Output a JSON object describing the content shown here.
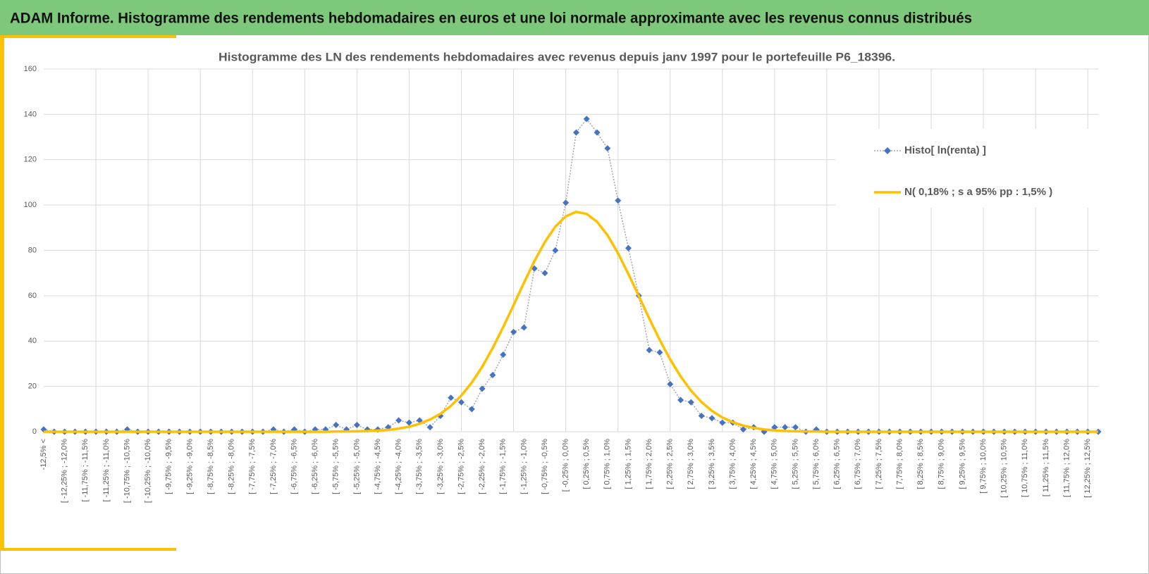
{
  "header": {
    "title": "ADAM Informe. Histogramme des rendements hebdomadaires en euros et une loi normale approximante avec les revenus connus distribués"
  },
  "chart_data": {
    "type": "line",
    "title": "Histogramme des LN des rendements hebdomadaires avec revenus depuis janv 1997 pour le portefeuille P6_18396.",
    "categories": [
      "-12,5% <",
      null,
      "[ -12,25% ; -12,0%",
      null,
      "[ -11,75% ; -11,5%",
      null,
      "[ -11,25% ; -11,0%",
      null,
      "[ -10,75% ; -10,5%",
      null,
      "[ -10,25% ; -10,0%",
      null,
      "[ -9,75% ; -9,5%",
      null,
      "[ -9,25% ; -9,0%",
      null,
      "[ -8,75% ; -8,5%",
      null,
      "[ -8,25% ; -8,0%",
      null,
      "[ -7,75% ; -7,5%",
      null,
      "[ -7,25% ; -7,0%",
      null,
      "[ -6,75% ; -6,5%",
      null,
      "[ -6,25% ; -6,0%",
      null,
      "[ -5,75% ; -5,5%",
      null,
      "[ -5,25% ; -5,0%",
      null,
      "[ -4,75% ; -4,5%",
      null,
      "[ -4,25% ; -4,0%",
      null,
      "[ -3,75% ; -3,5%",
      null,
      "[ -3,25% ; -3,0%",
      null,
      "[ -2,75% ; -2,5%",
      null,
      "[ -2,25% ; -2,0%",
      null,
      "[ -1,75% ; -1,5%",
      null,
      "[ -1,25% ; -1,0%",
      null,
      "[ -0,75% ; -0,5%",
      null,
      "[ -0,25% ; 0,0%",
      null,
      "[ 0,25% ; 0,5%",
      null,
      "[ 0,75% ; 1,0%",
      null,
      "[ 1,25% ; 1,5%",
      null,
      "[ 1,75% ; 2,0%",
      null,
      "[ 2,25% ; 2,5%",
      null,
      "[ 2,75% ; 3,0%",
      null,
      "[ 3,25% ; 3,5%",
      null,
      "[ 3,75% ; 4,0%",
      null,
      "[ 4,25% ; 4,5%",
      null,
      "[ 4,75% ; 5,0%",
      null,
      "[ 5,25% ; 5,5%",
      null,
      "[ 5,75% ; 6,0%",
      null,
      "[ 6,25% ; 6,5%",
      null,
      "[ 6,75% ; 7,0%",
      null,
      "[ 7,25% ; 7,5%",
      null,
      "[ 7,75% ; 8,0%",
      null,
      "[ 8,25% ; 8,5%",
      null,
      "[ 8,75% ; 9,0%",
      null,
      "[ 9,25% ; 9,5%",
      null,
      "[ 9,75% ; 10,0%",
      null,
      "[ 10,25% ; 10,5%",
      null,
      "[ 10,75% ; 11,0%",
      null,
      "[ 11,25% ; 11,5%",
      null,
      "[ 11,75% ; 12,0%",
      null,
      "[ 12,25% ; 12,5%",
      null
    ],
    "series": [
      {
        "name": "Histo[ ln(renta) ]",
        "color": "#4472c4",
        "line_color": "#a6a6a6",
        "line_style": "dotted",
        "marker": "diamond",
        "values": [
          1,
          0,
          0,
          0,
          0,
          0,
          0,
          0,
          1,
          0,
          0,
          0,
          0,
          0,
          0,
          0,
          0,
          0,
          0,
          0,
          0,
          0,
          1,
          0,
          1,
          0,
          1,
          1,
          3,
          1,
          3,
          1,
          1,
          2,
          5,
          4,
          5,
          2,
          7,
          15,
          13,
          10,
          19,
          25,
          34,
          44,
          46,
          72,
          70,
          80,
          101,
          132,
          138,
          132,
          125,
          102,
          81,
          60,
          36,
          35,
          21,
          14,
          13,
          7,
          6,
          4,
          4,
          1,
          2,
          0,
          2,
          2,
          2,
          0,
          1,
          0,
          0,
          0,
          0,
          0,
          0,
          0,
          0,
          0,
          0,
          0,
          0,
          0,
          0,
          0,
          0,
          0,
          0,
          0,
          0,
          0,
          0,
          0,
          0,
          0,
          0,
          0
        ]
      },
      {
        "name": "N( 0,18% ; s a 95% pp : 1,5% )",
        "color": "#ffc000",
        "line_style": "solid",
        "values": [
          0,
          0,
          0,
          0,
          0,
          0,
          0,
          0,
          0,
          0,
          0,
          0,
          0,
          0,
          0,
          0,
          0,
          0,
          0,
          0,
          0,
          0,
          0,
          0,
          0,
          0,
          0,
          0,
          0.1,
          0.1,
          0.2,
          0.3,
          0.5,
          0.8,
          1.4,
          2.2,
          3.5,
          5.4,
          7.9,
          11.4,
          16.0,
          21.7,
          28.7,
          36.9,
          46.1,
          55.8,
          65.8,
          75.3,
          83.7,
          90.5,
          95.0,
          97.0,
          96.1,
          92.6,
          86.7,
          78.8,
          69.6,
          59.8,
          49.9,
          40.5,
          31.9,
          24.4,
          18.1,
          13.1,
          9.2,
          6.3,
          4.2,
          2.7,
          1.7,
          1.0,
          0.6,
          0.3,
          0.2,
          0.1,
          0.1,
          0,
          0,
          0,
          0,
          0,
          0,
          0,
          0,
          0,
          0,
          0,
          0,
          0,
          0,
          0,
          0,
          0,
          0,
          0,
          0,
          0,
          0,
          0,
          0,
          0,
          0,
          0
        ]
      }
    ],
    "ylim": [
      0,
      160
    ],
    "yticks": [
      0,
      20,
      40,
      60,
      80,
      100,
      120,
      140,
      160
    ],
    "grid": true,
    "legend": "right"
  }
}
